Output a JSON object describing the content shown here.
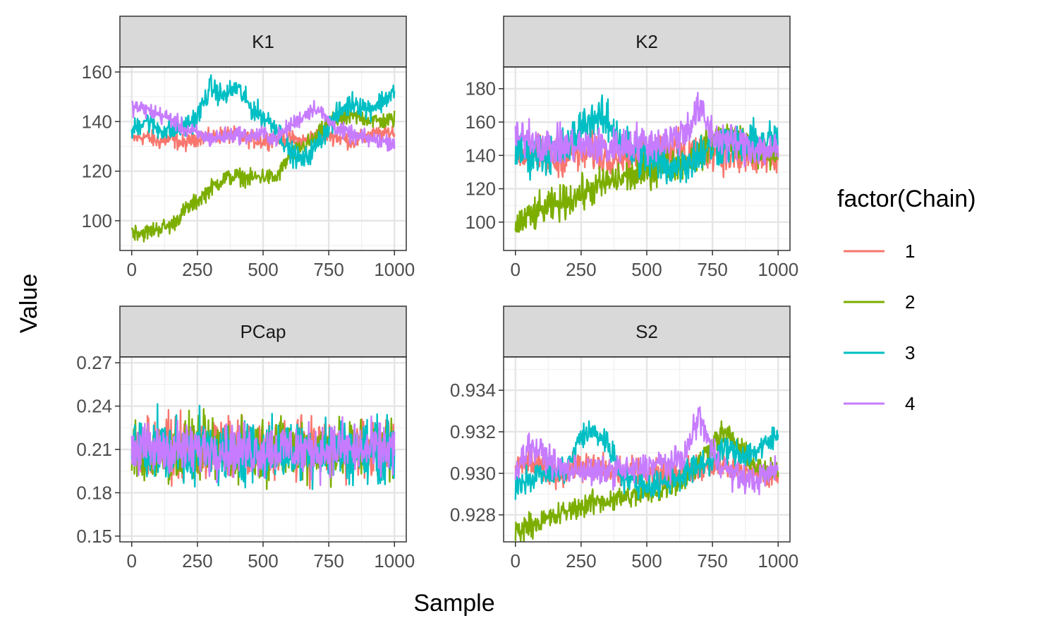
{
  "chart_data": {
    "type": "line",
    "xlabel": "Sample",
    "ylabel": "Value",
    "legend": {
      "title": "factor(Chain)",
      "placement": "right",
      "entries": [
        {
          "label": "1",
          "color": "#F8766D"
        },
        {
          "label": "2",
          "color": "#7CAE00"
        },
        {
          "label": "3",
          "color": "#00BFC4"
        },
        {
          "label": "4",
          "color": "#C77CFF"
        }
      ]
    },
    "grid": true,
    "panels": [
      {
        "title": "K1",
        "xlim": [
          -45,
          1045
        ],
        "ylim": [
          88,
          162
        ],
        "xticks": [
          0,
          250,
          500,
          750,
          1000
        ],
        "xtick_labels": [
          "0",
          "250",
          "500",
          "750",
          "1000"
        ],
        "yticks": [
          100,
          120,
          140,
          160
        ],
        "ytick_labels": [
          "100",
          "120",
          "140",
          "160"
        ],
        "x": [
          0,
          50,
          100,
          150,
          200,
          250,
          300,
          350,
          400,
          450,
          500,
          550,
          600,
          650,
          700,
          750,
          800,
          850,
          900,
          950,
          1000
        ],
        "noise": [
          3,
          3,
          4,
          3
        ],
        "series": [
          {
            "name": "1",
            "values": [
              133,
              134,
              132,
              133,
              131,
              134,
              133,
              135,
              134,
              133,
              132,
              134,
              133,
              132,
              134,
              135,
              133,
              132,
              134,
              135,
              136
            ]
          },
          {
            "name": "2",
            "values": [
              96,
              95,
              97,
              98,
              104,
              108,
              113,
              117,
              118,
              117,
              118,
              117,
              126,
              130,
              133,
              140,
              141,
              142,
              141,
              140,
              141
            ]
          },
          {
            "name": "3",
            "values": [
              136,
              141,
              137,
              136,
              138,
              142,
              154,
              150,
              154,
              146,
              142,
              138,
              128,
              124,
              130,
              138,
              145,
              148,
              145,
              148,
              152
            ]
          },
          {
            "name": "4",
            "values": [
              146,
              145,
              143,
              141,
              137,
              135,
              133,
              134,
              135,
              134,
              135,
              133,
              138,
              142,
              146,
              140,
              136,
              134,
              133,
              132,
              132
            ]
          }
        ]
      },
      {
        "title": "K2",
        "xlim": [
          -45,
          1045
        ],
        "ylim": [
          83,
          193
        ],
        "xticks": [
          0,
          250,
          500,
          750,
          1000
        ],
        "xtick_labels": [
          "0",
          "250",
          "500",
          "750",
          "1000"
        ],
        "yticks": [
          100,
          120,
          140,
          160,
          180
        ],
        "ytick_labels": [
          "100",
          "120",
          "140",
          "160",
          "180"
        ],
        "x": [
          0,
          50,
          100,
          150,
          200,
          250,
          300,
          350,
          400,
          450,
          500,
          550,
          600,
          650,
          700,
          750,
          800,
          850,
          900,
          950,
          1000
        ],
        "noise": [
          10,
          9,
          11,
          10
        ],
        "series": [
          {
            "name": "1",
            "values": [
              140,
              142,
              140,
              138,
              141,
              140,
              142,
              139,
              141,
              140,
              142,
              143,
              144,
              141,
              142,
              143,
              140,
              139,
              138,
              136,
              138
            ]
          },
          {
            "name": "2",
            "values": [
              98,
              103,
              107,
              110,
              113,
              117,
              120,
              124,
              126,
              128,
              130,
              133,
              135,
              137,
              140,
              150,
              152,
              150,
              145,
              140,
              142
            ]
          },
          {
            "name": "3",
            "values": [
              143,
              140,
              141,
              142,
              145,
              158,
              163,
              160,
              150,
              142,
              138,
              135,
              133,
              136,
              141,
              145,
              148,
              146,
              147,
              148,
              150
            ]
          },
          {
            "name": "4",
            "values": [
              149,
              152,
              147,
              145,
              146,
              145,
              146,
              144,
              146,
              148,
              147,
              148,
              150,
              155,
              168,
              152,
              149,
              147,
              145,
              144,
              142
            ]
          }
        ]
      },
      {
        "title": "PCap",
        "xlim": [
          -45,
          1045
        ],
        "ylim": [
          0.146,
          0.274
        ],
        "xticks": [
          0,
          250,
          500,
          750,
          1000
        ],
        "xtick_labels": [
          "0",
          "250",
          "500",
          "750",
          "1000"
        ],
        "yticks": [
          0.15,
          0.18,
          0.21,
          0.24,
          0.27
        ],
        "ytick_labels": [
          "0.15",
          "0.18",
          "0.21",
          "0.24",
          "0.27"
        ],
        "x": [
          0,
          50,
          100,
          150,
          200,
          250,
          300,
          350,
          400,
          450,
          500,
          550,
          600,
          650,
          700,
          750,
          800,
          850,
          900,
          950,
          1000
        ],
        "noise": [
          0.018,
          0.019,
          0.019,
          0.016
        ],
        "series": [
          {
            "name": "1",
            "values": [
              0.21,
              0.212,
              0.209,
              0.211,
              0.21,
              0.208,
              0.211,
              0.21,
              0.212,
              0.209,
              0.21,
              0.211,
              0.209,
              0.21,
              0.211,
              0.21,
              0.209,
              0.212,
              0.21,
              0.209,
              0.21
            ]
          },
          {
            "name": "2",
            "values": [
              0.209,
              0.207,
              0.21,
              0.206,
              0.209,
              0.211,
              0.21,
              0.208,
              0.21,
              0.212,
              0.209,
              0.21,
              0.211,
              0.212,
              0.21,
              0.211,
              0.21,
              0.209,
              0.211,
              0.212,
              0.21
            ]
          },
          {
            "name": "3",
            "values": [
              0.21,
              0.209,
              0.211,
              0.21,
              0.208,
              0.21,
              0.209,
              0.207,
              0.21,
              0.211,
              0.209,
              0.21,
              0.208,
              0.21,
              0.209,
              0.211,
              0.21,
              0.209,
              0.208,
              0.21,
              0.209
            ]
          },
          {
            "name": "4",
            "values": [
              0.211,
              0.21,
              0.209,
              0.211,
              0.21,
              0.209,
              0.21,
              0.211,
              0.209,
              0.21,
              0.209,
              0.21,
              0.211,
              0.209,
              0.21,
              0.209,
              0.211,
              0.21,
              0.209,
              0.21,
              0.211
            ]
          }
        ]
      },
      {
        "title": "S2",
        "xlim": [
          -45,
          1045
        ],
        "ylim": [
          0.9267,
          0.9356
        ],
        "xticks": [
          0,
          250,
          500,
          750,
          1000
        ],
        "xtick_labels": [
          "0",
          "250",
          "500",
          "750",
          "1000"
        ],
        "yticks": [
          0.928,
          0.93,
          0.932,
          0.934
        ],
        "ytick_labels": [
          "0.928",
          "0.930",
          "0.932",
          "0.934"
        ],
        "x": [
          0,
          50,
          100,
          150,
          200,
          250,
          300,
          350,
          400,
          450,
          500,
          550,
          600,
          650,
          700,
          750,
          800,
          850,
          900,
          950,
          1000
        ],
        "noise": [
          0.0006,
          0.0005,
          0.0006,
          0.0006
        ],
        "series": [
          {
            "name": "1",
            "values": [
              0.9302,
              0.9305,
              0.9303,
              0.93,
              0.9301,
              0.9304,
              0.9303,
              0.9302,
              0.93,
              0.9301,
              0.93,
              0.9299,
              0.93,
              0.9301,
              0.9302,
              0.9304,
              0.9303,
              0.9301,
              0.93,
              0.9299,
              0.9298
            ]
          },
          {
            "name": "2",
            "values": [
              0.9272,
              0.9275,
              0.9277,
              0.9279,
              0.9282,
              0.9284,
              0.9286,
              0.9287,
              0.9288,
              0.9289,
              0.929,
              0.9292,
              0.9295,
              0.9298,
              0.9305,
              0.9315,
              0.932,
              0.9312,
              0.9305,
              0.93,
              0.9302
            ]
          },
          {
            "name": "3",
            "values": [
              0.9295,
              0.9298,
              0.93,
              0.9299,
              0.9303,
              0.9318,
              0.932,
              0.9315,
              0.93,
              0.9296,
              0.9294,
              0.9295,
              0.9297,
              0.93,
              0.9304,
              0.9307,
              0.9312,
              0.9309,
              0.931,
              0.9313,
              0.9318
            ]
          },
          {
            "name": "4",
            "values": [
              0.9302,
              0.9313,
              0.931,
              0.9304,
              0.9301,
              0.9302,
              0.93,
              0.9301,
              0.9302,
              0.9301,
              0.9303,
              0.9305,
              0.9304,
              0.931,
              0.9328,
              0.931,
              0.9302,
              0.9298,
              0.9296,
              0.9299,
              0.9302
            ]
          }
        ]
      }
    ]
  }
}
